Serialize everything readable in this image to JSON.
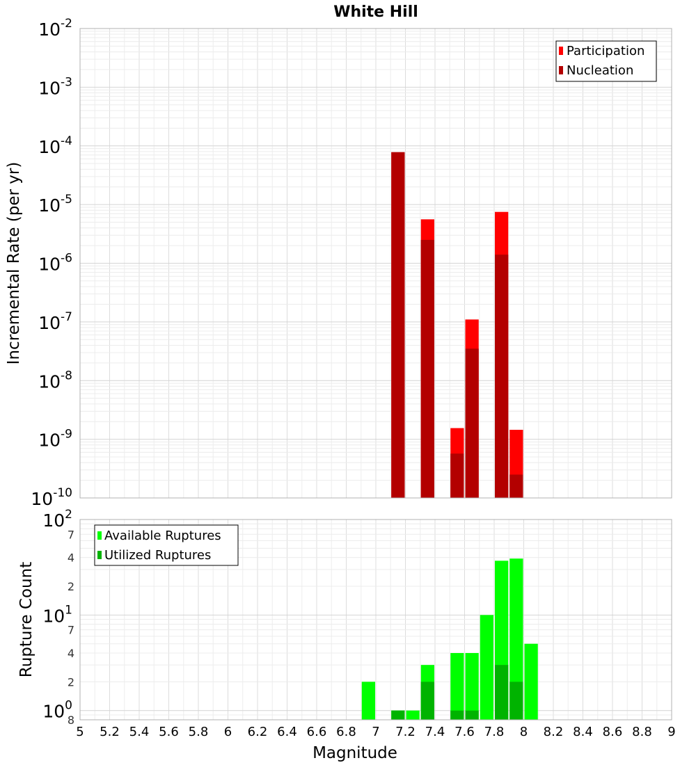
{
  "chart_data": [
    {
      "type": "bar",
      "title": "White Hill",
      "ylabel": "Incremental Rate (per yr)",
      "yscale": "log",
      "ylim": [
        1e-10,
        0.01
      ],
      "xlim": [
        5,
        9
      ],
      "y_tick_labels": [
        {
          "base": "10",
          "exp": "-2"
        },
        {
          "base": "10",
          "exp": "-3"
        },
        {
          "base": "10",
          "exp": "-4"
        },
        {
          "base": "10",
          "exp": "-5"
        },
        {
          "base": "10",
          "exp": "-6"
        },
        {
          "base": "10",
          "exp": "-7"
        },
        {
          "base": "10",
          "exp": "-8"
        },
        {
          "base": "10",
          "exp": "-9"
        },
        {
          "base": "10",
          "exp": "-10"
        }
      ],
      "legend": {
        "position": "top-right",
        "entries": [
          "Participation",
          "Nucleation"
        ]
      },
      "colors": {
        "participation": "#ff0000",
        "nucleation": "#b30000"
      },
      "grid": true,
      "series": [
        {
          "name": "Participation",
          "x": [
            7.15,
            7.35,
            7.55,
            7.65,
            7.85,
            7.95
          ],
          "values": [
            7.8e-05,
            5.6e-06,
            1.55e-09,
            1.1e-07,
            7.5e-06,
            1.45e-09
          ]
        },
        {
          "name": "Nucleation",
          "x": [
            7.15,
            7.35,
            7.55,
            7.65,
            7.85,
            7.95
          ],
          "values": [
            7.8e-05,
            2.5e-06,
            5.7e-10,
            3.5e-08,
            1.4e-06,
            2.5e-10
          ]
        }
      ]
    },
    {
      "type": "bar",
      "xlabel": "Magnitude",
      "ylabel": "Rupture Count",
      "yscale": "log",
      "ylim": [
        0.8,
        100
      ],
      "xlim": [
        5,
        9
      ],
      "x_tick_labels": [
        "5",
        "5.2",
        "5.4",
        "5.6",
        "5.8",
        "6",
        "6.2",
        "6.4",
        "6.6",
        "6.8",
        "7",
        "7.2",
        "7.4",
        "7.6",
        "7.8",
        "8",
        "8.2",
        "8.4",
        "8.6",
        "8.8",
        "9"
      ],
      "y_major_labels": [
        {
          "base": "10",
          "exp": "2"
        },
        {
          "base": "10",
          "exp": "1"
        },
        {
          "base": "10",
          "exp": "0"
        }
      ],
      "y_minor_labels": [
        "7",
        "4",
        "2",
        "7",
        "4",
        "2",
        "8"
      ],
      "legend": {
        "position": "top-left",
        "entries": [
          "Available Ruptures",
          "Utilized Ruptures"
        ]
      },
      "colors": {
        "available": "#00ff00",
        "utilized": "#00b300"
      },
      "grid": true,
      "series": [
        {
          "name": "Available Ruptures",
          "x": [
            6.95,
            7.15,
            7.25,
            7.35,
            7.55,
            7.65,
            7.75,
            7.85,
            7.95,
            8.05
          ],
          "values": [
            2,
            1,
            1,
            3,
            4,
            4,
            10,
            37,
            39,
            5
          ]
        },
        {
          "name": "Utilized Ruptures",
          "x": [
            7.15,
            7.35,
            7.55,
            7.65,
            7.85,
            7.95
          ],
          "values": [
            1,
            2,
            1,
            1,
            3,
            2
          ]
        }
      ]
    }
  ]
}
